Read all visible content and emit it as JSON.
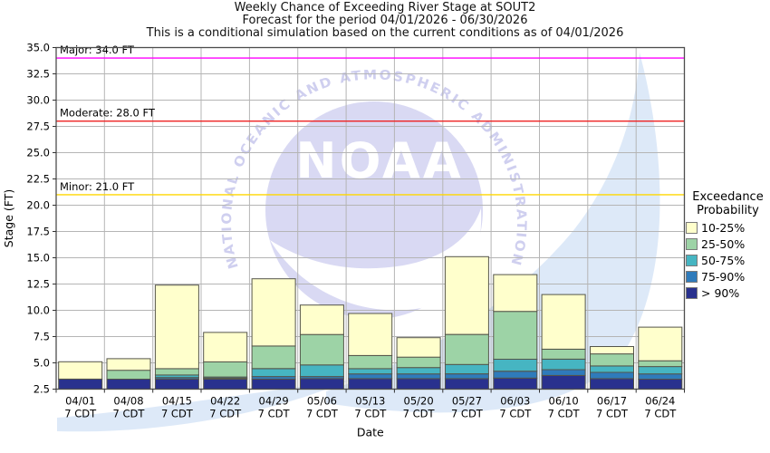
{
  "title": {
    "line1": "Weekly Chance of Exceeding River Stage at SOUT2",
    "line2": "Forecast for the period 04/01/2026 - 06/30/2026",
    "line3": "This is a conditional simulation based on the current conditions as of 04/01/2026"
  },
  "legend": {
    "title_line1": "Exceedance",
    "title_line2": "Probability",
    "items": [
      {
        "label": "10-25%",
        "color": "#ffffcc"
      },
      {
        "label": "25-50%",
        "color": "#9dd3a6"
      },
      {
        "label": "50-75%",
        "color": "#46b5c2"
      },
      {
        "label": "75-90%",
        "color": "#2f7bbb"
      },
      {
        "label": "> 90%",
        "color": "#29318e"
      }
    ]
  },
  "watermark": {
    "arc_text": "NATIONAL OCEANIC AND ATMOSPHERIC ADMINISTRATION",
    "center_text": "NOAA"
  },
  "colors": {
    "band_10_25": "#ffffcc",
    "band_25_50": "#9dd3a6",
    "band_50_75": "#46b5c2",
    "band_75_90": "#2f7bbb",
    "band_gt90": "#29318e",
    "segment_border": "#55554a",
    "grid": "#b5b5b5",
    "plot_border": "#4d4d4d",
    "tick": "#333333",
    "watermark_circle": "#d9d9f3",
    "watermark_arc_text": "#cfcfef",
    "watermark_wing": "#dde9f8",
    "threshold_major": "#ff00ff",
    "threshold_moderate": "#ee2222",
    "threshold_minor": "#ffd700"
  },
  "chart_data": {
    "type": "bar",
    "stacked": true,
    "title": "Weekly Chance of Exceeding River Stage at SOUT2",
    "xlabel": "Date",
    "ylabel": "Stage (FT)",
    "ylim": [
      2.5,
      35.0
    ],
    "ytick_step": 2.5,
    "grid": true,
    "legend_position": "right",
    "baseline": 2.5,
    "categories": [
      "04/01",
      "04/08",
      "04/15",
      "04/22",
      "04/29",
      "05/06",
      "05/13",
      "05/20",
      "05/27",
      "06/03",
      "06/10",
      "06/17",
      "06/24"
    ],
    "category_sublabel": "7 CDT",
    "series": [
      {
        "name": "> 90%",
        "color": "#29318e",
        "stage_top": [
          3.45,
          3.45,
          3.45,
          3.45,
          3.45,
          3.5,
          3.5,
          3.5,
          3.5,
          3.55,
          3.8,
          3.5,
          3.45
        ]
      },
      {
        "name": "75-90%",
        "color": "#2f7bbb",
        "stage_top": [
          3.45,
          3.45,
          3.6,
          3.55,
          3.7,
          3.7,
          3.95,
          3.95,
          3.95,
          4.2,
          4.35,
          4.1,
          3.95
        ]
      },
      {
        "name": "50-75%",
        "color": "#46b5c2",
        "stage_top": [
          3.45,
          3.45,
          3.85,
          3.65,
          4.45,
          4.8,
          4.45,
          4.55,
          4.85,
          5.35,
          5.35,
          4.7,
          4.65
        ]
      },
      {
        "name": "25-50%",
        "color": "#9dd3a6",
        "stage_top": [
          3.45,
          4.3,
          4.45,
          5.1,
          6.6,
          7.7,
          5.7,
          5.55,
          7.7,
          9.9,
          6.3,
          5.85,
          5.2
        ]
      },
      {
        "name": "10-25%",
        "color": "#ffffcc",
        "stage_top": [
          5.1,
          5.4,
          12.4,
          7.9,
          13.0,
          10.5,
          9.7,
          7.4,
          15.1,
          13.4,
          11.5,
          6.55,
          8.4
        ]
      }
    ],
    "thresholds": [
      {
        "name": "Major",
        "label": "Major: 34.0 FT",
        "value": 34.0,
        "color": "#ff00ff"
      },
      {
        "name": "Moderate",
        "label": "Moderate: 28.0 FT",
        "value": 28.0,
        "color": "#ee2222"
      },
      {
        "name": "Minor",
        "label": "Minor: 21.0 FT",
        "value": 21.0,
        "color": "#ffd700"
      }
    ]
  }
}
